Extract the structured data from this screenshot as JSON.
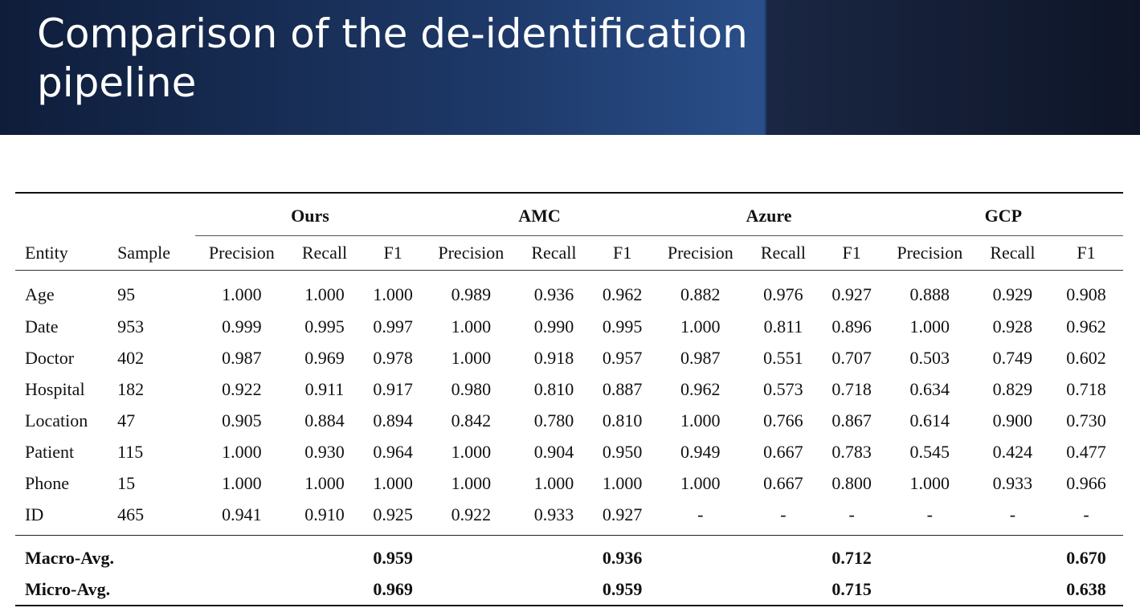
{
  "slide": {
    "title": "Comparison of the de-identification pipeline"
  },
  "table": {
    "groups": [
      "Ours",
      "AMC",
      "Azure",
      "GCP"
    ],
    "columns": [
      "Entity",
      "Sample",
      "Precision",
      "Recall",
      "F1",
      "Precision",
      "Recall",
      "F1",
      "Precision",
      "Recall",
      "F1",
      "Precision",
      "Recall",
      "F1"
    ],
    "rows": [
      [
        "Age",
        "95",
        "1.000",
        "1.000",
        "1.000",
        "0.989",
        "0.936",
        "0.962",
        "0.882",
        "0.976",
        "0.927",
        "0.888",
        "0.929",
        "0.908"
      ],
      [
        "Date",
        "953",
        "0.999",
        "0.995",
        "0.997",
        "1.000",
        "0.990",
        "0.995",
        "1.000",
        "0.811",
        "0.896",
        "1.000",
        "0.928",
        "0.962"
      ],
      [
        "Doctor",
        "402",
        "0.987",
        "0.969",
        "0.978",
        "1.000",
        "0.918",
        "0.957",
        "0.987",
        "0.551",
        "0.707",
        "0.503",
        "0.749",
        "0.602"
      ],
      [
        "Hospital",
        "182",
        "0.922",
        "0.911",
        "0.917",
        "0.980",
        "0.810",
        "0.887",
        "0.962",
        "0.573",
        "0.718",
        "0.634",
        "0.829",
        "0.718"
      ],
      [
        "Location",
        "47",
        "0.905",
        "0.884",
        "0.894",
        "0.842",
        "0.780",
        "0.810",
        "1.000",
        "0.766",
        "0.867",
        "0.614",
        "0.900",
        "0.730"
      ],
      [
        "Patient",
        "115",
        "1.000",
        "0.930",
        "0.964",
        "1.000",
        "0.904",
        "0.950",
        "0.949",
        "0.667",
        "0.783",
        "0.545",
        "0.424",
        "0.477"
      ],
      [
        "Phone",
        "15",
        "1.000",
        "1.000",
        "1.000",
        "1.000",
        "1.000",
        "1.000",
        "1.000",
        "0.667",
        "0.800",
        "1.000",
        "0.933",
        "0.966"
      ],
      [
        "ID",
        "465",
        "0.941",
        "0.910",
        "0.925",
        "0.922",
        "0.933",
        "0.927",
        "-",
        "-",
        "-",
        "-",
        "-",
        "-"
      ]
    ],
    "averages": [
      {
        "label": "Macro-Avg.",
        "f1": [
          "0.959",
          "0.936",
          "0.712",
          "0.670"
        ]
      },
      {
        "label": "Micro-Avg.",
        "f1": [
          "0.969",
          "0.959",
          "0.715",
          "0.638"
        ]
      }
    ]
  }
}
